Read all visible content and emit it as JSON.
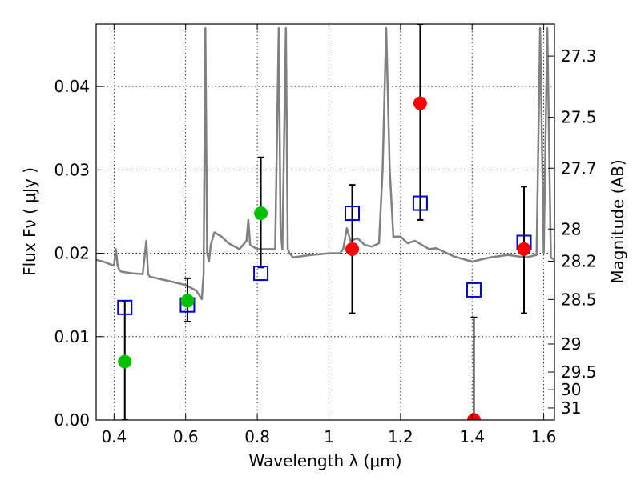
{
  "chart_data": {
    "type": "scatter",
    "title": "",
    "xlabel": "Wavelength  λ (μm)",
    "ylabel": "Flux  Fν  ( μJy )",
    "y2label": "Magnitude (AB)",
    "xlim": [
      0.35,
      1.63
    ],
    "ylim": [
      0.0,
      0.0475
    ],
    "grid": true,
    "x_ticks": [
      {
        "value": 0.4,
        "label": "0.4"
      },
      {
        "value": 0.6,
        "label": "0.6"
      },
      {
        "value": 0.8,
        "label": "0.8"
      },
      {
        "value": 1.0,
        "label": "1"
      },
      {
        "value": 1.2,
        "label": "1.2"
      },
      {
        "value": 1.4,
        "label": "1.4"
      },
      {
        "value": 1.6,
        "label": "1.6"
      }
    ],
    "y_ticks": [
      {
        "value": 0.0,
        "label": "0.00"
      },
      {
        "value": 0.01,
        "label": "0.01"
      },
      {
        "value": 0.02,
        "label": "0.02"
      },
      {
        "value": 0.03,
        "label": "0.03"
      },
      {
        "value": 0.04,
        "label": "0.04"
      }
    ],
    "y2_ticks": [
      {
        "value": 27.3,
        "label": "27.3"
      },
      {
        "value": 27.5,
        "label": "27.5"
      },
      {
        "value": 27.7,
        "label": "27.7"
      },
      {
        "value": 28,
        "label": "28"
      },
      {
        "value": 28.2,
        "label": "28.2"
      },
      {
        "value": 28.5,
        "label": "28.5"
      },
      {
        "value": 29,
        "label": "29"
      },
      {
        "value": 29.5,
        "label": "29.5"
      },
      {
        "value": 30,
        "label": "30"
      },
      {
        "value": 31,
        "label": "31"
      }
    ],
    "series": [
      {
        "kind": "line",
        "color": "#808080",
        "x": [
          0.35,
          0.37,
          0.4,
          0.405,
          0.41,
          0.415,
          0.42,
          0.45,
          0.48,
          0.49,
          0.495,
          0.5,
          0.55,
          0.6,
          0.63,
          0.645,
          0.65,
          0.655,
          0.66,
          0.665,
          0.67,
          0.68,
          0.7,
          0.72,
          0.75,
          0.77,
          0.775,
          0.78,
          0.8,
          0.82,
          0.85,
          0.86,
          0.865,
          0.87,
          0.88,
          0.885,
          0.89,
          0.9,
          0.95,
          1.0,
          1.03,
          1.04,
          1.05,
          1.06,
          1.08,
          1.1,
          1.12,
          1.14,
          1.15,
          1.16,
          1.17,
          1.18,
          1.2,
          1.22,
          1.24,
          1.26,
          1.28,
          1.3,
          1.35,
          1.4,
          1.45,
          1.5,
          1.55,
          1.58,
          1.59,
          1.6,
          1.61,
          1.62,
          1.63
        ],
        "y": [
          0.0192,
          0.019,
          0.0185,
          0.0205,
          0.0185,
          0.018,
          0.0178,
          0.0176,
          0.0175,
          0.0215,
          0.0175,
          0.0172,
          0.0167,
          0.0162,
          0.0155,
          0.0145,
          0.0175,
          0.047,
          0.02,
          0.019,
          0.021,
          0.0225,
          0.022,
          0.0212,
          0.0205,
          0.0215,
          0.024,
          0.021,
          0.0205,
          0.0205,
          0.0205,
          0.047,
          0.023,
          0.0205,
          0.047,
          0.0205,
          0.02,
          0.0195,
          0.0198,
          0.02,
          0.02,
          0.0205,
          0.023,
          0.0215,
          0.0218,
          0.021,
          0.0208,
          0.0212,
          0.03,
          0.047,
          0.03,
          0.022,
          0.022,
          0.0212,
          0.0215,
          0.021,
          0.0205,
          0.0206,
          0.0196,
          0.019,
          0.0195,
          0.0198,
          0.0195,
          0.0198,
          0.047,
          0.02,
          0.047,
          0.0195,
          0.0192
        ]
      },
      {
        "kind": "errorbar",
        "color": "#000000",
        "x": [
          0.43,
          0.605,
          0.81,
          1.065,
          1.255,
          1.405,
          1.545
        ],
        "low": [
          0.0,
          0.0118,
          0.0183,
          0.0128,
          0.024,
          0.0,
          0.0128
        ],
        "high": [
          0.0143,
          0.017,
          0.0315,
          0.0282,
          0.0475,
          0.0123,
          0.028
        ]
      },
      {
        "kind": "marker",
        "shape": "square",
        "color": "#0000cc",
        "x": [
          0.43,
          0.605,
          0.81,
          1.065,
          1.255,
          1.405,
          1.545
        ],
        "y": [
          0.0135,
          0.0138,
          0.0176,
          0.0248,
          0.026,
          0.0156,
          0.0213
        ]
      },
      {
        "kind": "marker",
        "shape": "circle",
        "color": "#00c000",
        "x": [
          0.43,
          0.605,
          0.81
        ],
        "y": [
          0.007,
          0.0143,
          0.0248
        ]
      },
      {
        "kind": "marker",
        "shape": "circle",
        "color": "#ff0000",
        "x": [
          1.065,
          1.255,
          1.405,
          1.545
        ],
        "y": [
          0.0205,
          0.038,
          0.0,
          0.0205
        ]
      }
    ]
  }
}
